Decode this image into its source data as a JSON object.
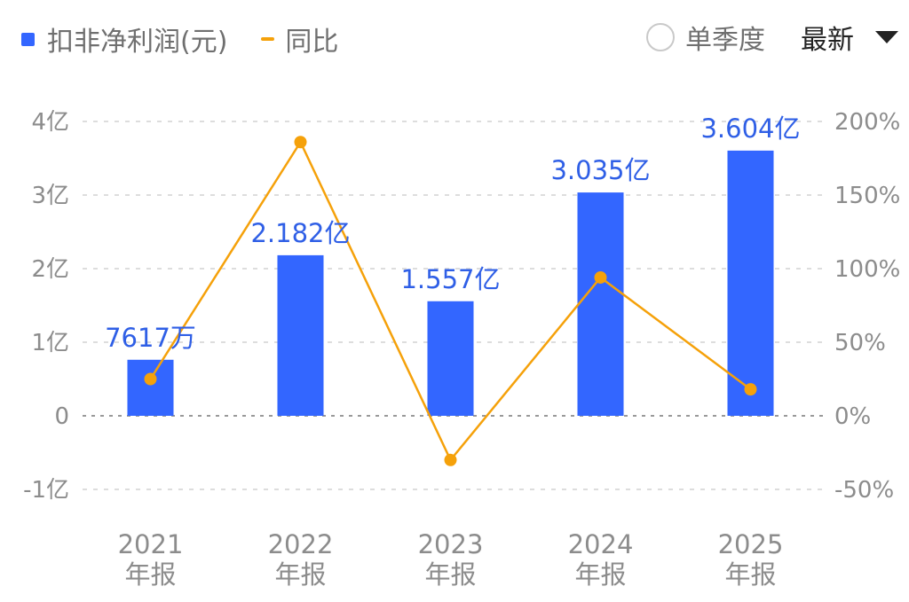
{
  "legend": {
    "bar_label": "扣非净利润(元)",
    "line_label": "同比"
  },
  "controls": {
    "single_quarter_label": "单季度",
    "period_selected": "最新"
  },
  "colors": {
    "bar": "#3366ff",
    "line": "#f5a10a",
    "grid": "#dddddd",
    "zero_line": "#999999",
    "label": "#2f5fe6"
  },
  "chart_data": {
    "type": "bar",
    "categories": [
      [
        "2021",
        "年报"
      ],
      [
        "2022",
        "年报"
      ],
      [
        "2023",
        "年报"
      ],
      [
        "2024",
        "年报"
      ],
      [
        "2025",
        "年报"
      ]
    ],
    "series": [
      {
        "name": "扣非净利润(元)",
        "type": "bar",
        "axis": "left",
        "values": [
          0.7617,
          2.182,
          1.557,
          3.035,
          3.604
        ],
        "labels": [
          "7617万",
          "2.182亿",
          "1.557亿",
          "3.035亿",
          "3.604亿"
        ]
      },
      {
        "name": "同比",
        "type": "line",
        "axis": "right",
        "values": [
          25,
          186,
          -30,
          94,
          18
        ]
      }
    ],
    "y_left": {
      "range": [
        -1,
        4
      ],
      "ticks": [
        4,
        3,
        2,
        1,
        0,
        -1
      ],
      "tick_labels": [
        "4亿",
        "3亿",
        "2亿",
        "1亿",
        "0",
        "-1亿"
      ]
    },
    "y_right": {
      "range": [
        -50,
        200
      ],
      "ticks": [
        200,
        150,
        100,
        50,
        0,
        -50
      ],
      "tick_labels": [
        "200%",
        "150%",
        "100%",
        "50%",
        "0%",
        "-50%"
      ]
    },
    "grid": true,
    "legend_position": "top-left"
  }
}
